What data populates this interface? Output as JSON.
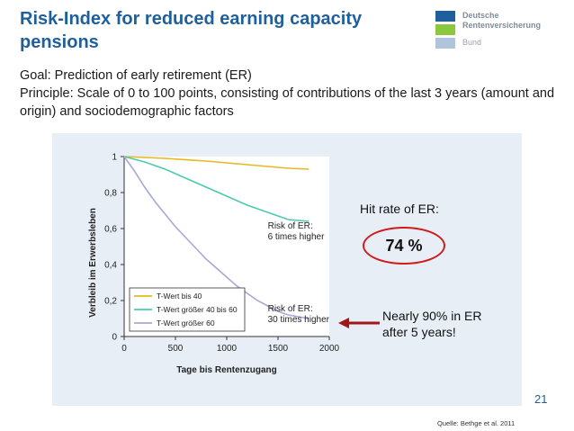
{
  "header": {
    "title": "Risk-Index for reduced earning capacity pensions"
  },
  "logo": {
    "line1": "Deutsche",
    "line2": "Rentenversicherung",
    "line3": "Bund",
    "colors": [
      "#1f5f9c",
      "#8dc63f",
      "#b0c4de"
    ]
  },
  "body": {
    "goal": "Goal: Prediction of early retirement (ER)",
    "principle": "Principle: Scale of 0 to 100 points, consisting of contributions of the last 3 years (amount and origin) and sociodemographic factors"
  },
  "chart_data": {
    "type": "line",
    "xlabel": "Tage bis Rentenzugang",
    "ylabel": "Verbleib im Erwerbsleben",
    "xlim": [
      0,
      2000
    ],
    "ylim": [
      0,
      1
    ],
    "xticks": [
      "0",
      "500",
      "1000",
      "1500",
      "2000"
    ],
    "yticks": [
      "0",
      "0,2",
      "0,4",
      "0,6",
      "0,8",
      "1"
    ],
    "legend_position": "bottom-left",
    "grid": false,
    "series": [
      {
        "name": "T-Wert bis 40",
        "color": "#e8b820",
        "x": [
          0,
          200,
          400,
          600,
          800,
          1000,
          1200,
          1400,
          1600,
          1800
        ],
        "y": [
          1.0,
          0.995,
          0.99,
          0.982,
          0.975,
          0.965,
          0.955,
          0.945,
          0.935,
          0.93
        ]
      },
      {
        "name": "T-Wert größer 40 bis 60",
        "color": "#4ec9b0",
        "x": [
          0,
          200,
          400,
          600,
          800,
          1000,
          1200,
          1400,
          1600,
          1800
        ],
        "y": [
          1.0,
          0.97,
          0.93,
          0.88,
          0.83,
          0.78,
          0.73,
          0.69,
          0.65,
          0.64
        ]
      },
      {
        "name": "T-Wert größer 60",
        "color": "#a8a8d8",
        "x": [
          0,
          100,
          200,
          300,
          400,
          500,
          600,
          700,
          800,
          900,
          1000,
          1100,
          1200,
          1300,
          1400,
          1500,
          1600,
          1700,
          1800
        ],
        "y": [
          1.0,
          0.92,
          0.83,
          0.75,
          0.68,
          0.61,
          0.55,
          0.49,
          0.43,
          0.38,
          0.33,
          0.28,
          0.24,
          0.2,
          0.17,
          0.14,
          0.12,
          0.11,
          0.1
        ]
      }
    ],
    "annotations": [
      {
        "text": [
          "Risk of ER:",
          "6 times higher"
        ],
        "x": 1400,
        "y": 0.6
      },
      {
        "text": [
          "Risk of ER:",
          "30 times higher"
        ],
        "x": 1400,
        "y": 0.14
      }
    ]
  },
  "callouts": {
    "hit_rate_label": "Hit rate of ER:",
    "hit_rate_value": "74 %",
    "nearly_line1": "Nearly 90% in  ER",
    "nearly_line2": "after 5 years!",
    "accent_color": "#d11a1a"
  },
  "footer": {
    "page_number": "21",
    "source": "Quelle: Bethge et al. 2011"
  }
}
